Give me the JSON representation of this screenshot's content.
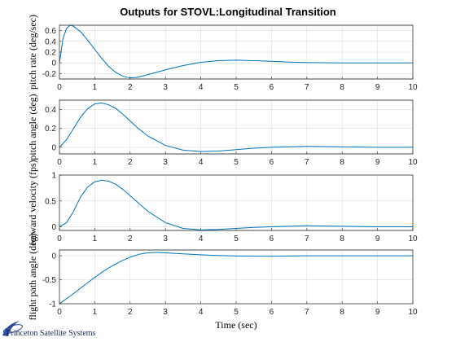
{
  "chart_data": {
    "type": "line",
    "title": "Outputs for STOVL:Longitudinal Transition",
    "xlabel": "Time (sec)",
    "color": "#0072bd",
    "grid": true,
    "subplots": [
      {
        "ylabel": "pitch rate (deg/sec)",
        "xlim": [
          0,
          10
        ],
        "ylim": [
          -0.3,
          0.7
        ],
        "xticks": [
          0,
          1,
          2,
          3,
          4,
          5,
          6,
          7,
          8,
          9,
          10
        ],
        "yticks": [
          -0.2,
          0,
          0.2,
          0.4,
          0.6
        ],
        "ytick_labels": [
          "-0.2",
          "0",
          "0.2",
          "0.4",
          "0.6"
        ],
        "x": [
          0,
          0.1,
          0.2,
          0.3,
          0.4,
          0.6,
          0.8,
          1.0,
          1.2,
          1.4,
          1.6,
          1.8,
          2.0,
          2.2,
          2.5,
          3.0,
          3.5,
          4.0,
          4.5,
          5.0,
          5.5,
          6.0,
          6.5,
          7.0,
          8.0,
          9.0,
          10.0
        ],
        "y": [
          0.0,
          0.45,
          0.64,
          0.7,
          0.68,
          0.58,
          0.42,
          0.25,
          0.08,
          -0.07,
          -0.18,
          -0.25,
          -0.28,
          -0.27,
          -0.22,
          -0.13,
          -0.05,
          0.01,
          0.04,
          0.05,
          0.04,
          0.03,
          0.015,
          0.005,
          0.0,
          0.0,
          0.0
        ]
      },
      {
        "ylabel": "pitch angle (deg)",
        "xlim": [
          0,
          10
        ],
        "ylim": [
          -0.07,
          0.5
        ],
        "xticks": [
          0,
          1,
          2,
          3,
          4,
          5,
          6,
          7,
          8,
          9,
          10
        ],
        "yticks": [
          0,
          0.2,
          0.4
        ],
        "ytick_labels": [
          "0",
          "0.2",
          "0.4"
        ],
        "x": [
          0,
          0.2,
          0.4,
          0.6,
          0.8,
          1.0,
          1.2,
          1.4,
          1.6,
          1.8,
          2.0,
          2.2,
          2.5,
          3.0,
          3.5,
          4.0,
          4.5,
          5.0,
          5.5,
          6.0,
          7.0,
          8.0,
          9.0,
          10.0
        ],
        "y": [
          0.0,
          0.08,
          0.2,
          0.32,
          0.41,
          0.46,
          0.47,
          0.45,
          0.41,
          0.35,
          0.28,
          0.21,
          0.12,
          0.02,
          -0.03,
          -0.045,
          -0.04,
          -0.025,
          -0.01,
          0.0,
          0.01,
          0.005,
          0.0,
          0.0
        ]
      },
      {
        "ylabel": "forward velocity (fps)",
        "xlim": [
          0,
          10
        ],
        "ylim": [
          -0.07,
          1.0
        ],
        "xticks": [
          0,
          1,
          2,
          3,
          4,
          5,
          6,
          7,
          8,
          9,
          10
        ],
        "yticks": [
          0,
          0.5,
          1
        ],
        "ytick_labels": [
          "0",
          "0.5",
          "1"
        ],
        "x": [
          0,
          0.2,
          0.4,
          0.6,
          0.8,
          1.0,
          1.2,
          1.4,
          1.6,
          1.8,
          2.0,
          2.2,
          2.5,
          3.0,
          3.5,
          4.0,
          4.5,
          5.0,
          5.5,
          6.0,
          7.0,
          8.0,
          9.0,
          10.0
        ],
        "y": [
          0.0,
          0.08,
          0.3,
          0.58,
          0.77,
          0.87,
          0.9,
          0.88,
          0.82,
          0.72,
          0.6,
          0.48,
          0.3,
          0.08,
          -0.03,
          -0.06,
          -0.05,
          -0.03,
          -0.01,
          0.0,
          0.02,
          0.01,
          0.0,
          0.0
        ]
      },
      {
        "ylabel": "flight path angle (deg)",
        "xlim": [
          0,
          10
        ],
        "ylim": [
          -1.0,
          0.12
        ],
        "xticks": [
          0,
          1,
          2,
          3,
          4,
          5,
          6,
          7,
          8,
          9,
          10
        ],
        "yticks": [
          -1,
          -0.5,
          0
        ],
        "ytick_labels": [
          "-1",
          "-0.5",
          "0"
        ],
        "x": [
          0,
          0.25,
          0.5,
          0.75,
          1.0,
          1.25,
          1.5,
          1.75,
          2.0,
          2.25,
          2.5,
          2.75,
          3.0,
          3.5,
          4.0,
          4.5,
          5.0,
          6.0,
          7.0,
          8.0,
          9.0,
          10.0
        ],
        "y": [
          -1.0,
          -0.87,
          -0.73,
          -0.59,
          -0.45,
          -0.32,
          -0.21,
          -0.11,
          -0.03,
          0.03,
          0.06,
          0.07,
          0.06,
          0.04,
          0.02,
          0.005,
          -0.005,
          -0.01,
          0.0,
          0.0,
          0.0,
          0.0
        ]
      }
    ]
  },
  "brand": {
    "text": "Princeton Satellite Systems",
    "logo_color": "#2a4a9a"
  }
}
